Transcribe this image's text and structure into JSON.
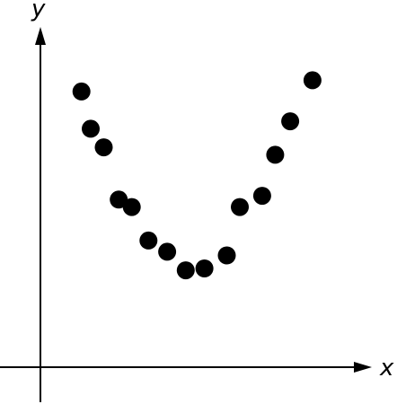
{
  "chart_data": {
    "type": "scatter",
    "title": "",
    "xlabel": "x",
    "ylabel": "y",
    "grid": false,
    "legend": "none",
    "colors": {
      "axes": "#000000",
      "points": "#000000"
    },
    "xlim": [
      -1.1,
      9.5
    ],
    "ylim": [
      -1,
      9.3
    ],
    "series": [
      {
        "values": [
          {
            "x": 1.1,
            "y": 7.4
          },
          {
            "x": 1.35,
            "y": 6.4
          },
          {
            "x": 1.7,
            "y": 5.9
          },
          {
            "x": 2.1,
            "y": 4.5
          },
          {
            "x": 2.45,
            "y": 4.3
          },
          {
            "x": 2.9,
            "y": 3.4
          },
          {
            "x": 3.4,
            "y": 3.1
          },
          {
            "x": 3.9,
            "y": 2.6
          },
          {
            "x": 4.4,
            "y": 2.65
          },
          {
            "x": 5.0,
            "y": 3.0
          },
          {
            "x": 5.35,
            "y": 4.3
          },
          {
            "x": 5.95,
            "y": 4.6
          },
          {
            "x": 6.3,
            "y": 5.7
          },
          {
            "x": 6.7,
            "y": 6.6
          },
          {
            "x": 7.3,
            "y": 7.7
          }
        ]
      }
    ]
  }
}
